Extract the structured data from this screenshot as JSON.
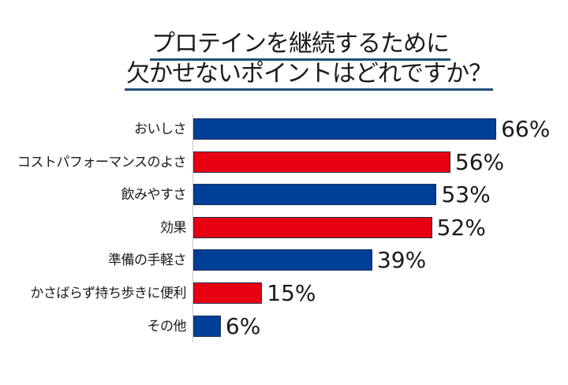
{
  "title": {
    "line1": "プロテインを継続するために",
    "line2": "欠かせないポイントはどれですか？"
  },
  "colors": {
    "blue": "#003f98",
    "red": "#e60012",
    "title_underline": "#1f4e79"
  },
  "chart_data": {
    "type": "bar",
    "orientation": "horizontal",
    "title": "プロテインを継続するために欠かせないポイントはどれですか？",
    "categories": [
      "おいしさ",
      "コストパフォーマンスのよさ",
      "飲みやすさ",
      "効果",
      "準備の手軽さ",
      "かさばらず持ち歩きに便利",
      "その他"
    ],
    "values": [
      66,
      56,
      53,
      52,
      39,
      15,
      6
    ],
    "value_labels": [
      "66%",
      "56%",
      "53%",
      "52%",
      "39%",
      "15%",
      "6%"
    ],
    "bar_colors": [
      "#003f98",
      "#e60012",
      "#003f98",
      "#e60012",
      "#003f98",
      "#e60012",
      "#003f98"
    ],
    "xlabel": "",
    "ylabel": "",
    "unit": "%",
    "grid": false,
    "legend": null
  }
}
